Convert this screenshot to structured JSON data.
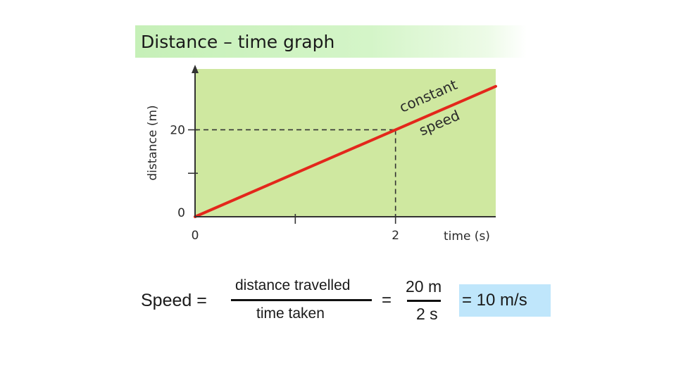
{
  "slide": {
    "title": "Distance – time  graph"
  },
  "chart_data": {
    "type": "line",
    "xlabel": "time (s)",
    "ylabel": "distance (m)",
    "x_ticks": [
      0,
      1,
      2
    ],
    "x_tick_labels": [
      "0",
      "",
      "2"
    ],
    "y_ticks": [
      0,
      10,
      20
    ],
    "y_tick_labels": [
      "0",
      "",
      "20"
    ],
    "xlim": [
      0,
      3.0
    ],
    "ylim": [
      0,
      34
    ],
    "series": [
      {
        "x": [
          0,
          3.0
        ],
        "y": [
          0,
          30
        ]
      }
    ],
    "reference_point": {
      "x": 2,
      "y": 20
    },
    "annotation": [
      "constant",
      "speed"
    ],
    "colors": {
      "plot_background": "#cfe8a0",
      "line": "#e3271b",
      "axes": "#333333",
      "guides": "#333333"
    }
  },
  "formula": {
    "speed_label": "Speed  =",
    "numerator": "distance travelled",
    "denominator": "time taken",
    "equals": "=",
    "value_numerator": "20 m",
    "value_denominator": "2 s",
    "result": "= 10 m/s"
  }
}
